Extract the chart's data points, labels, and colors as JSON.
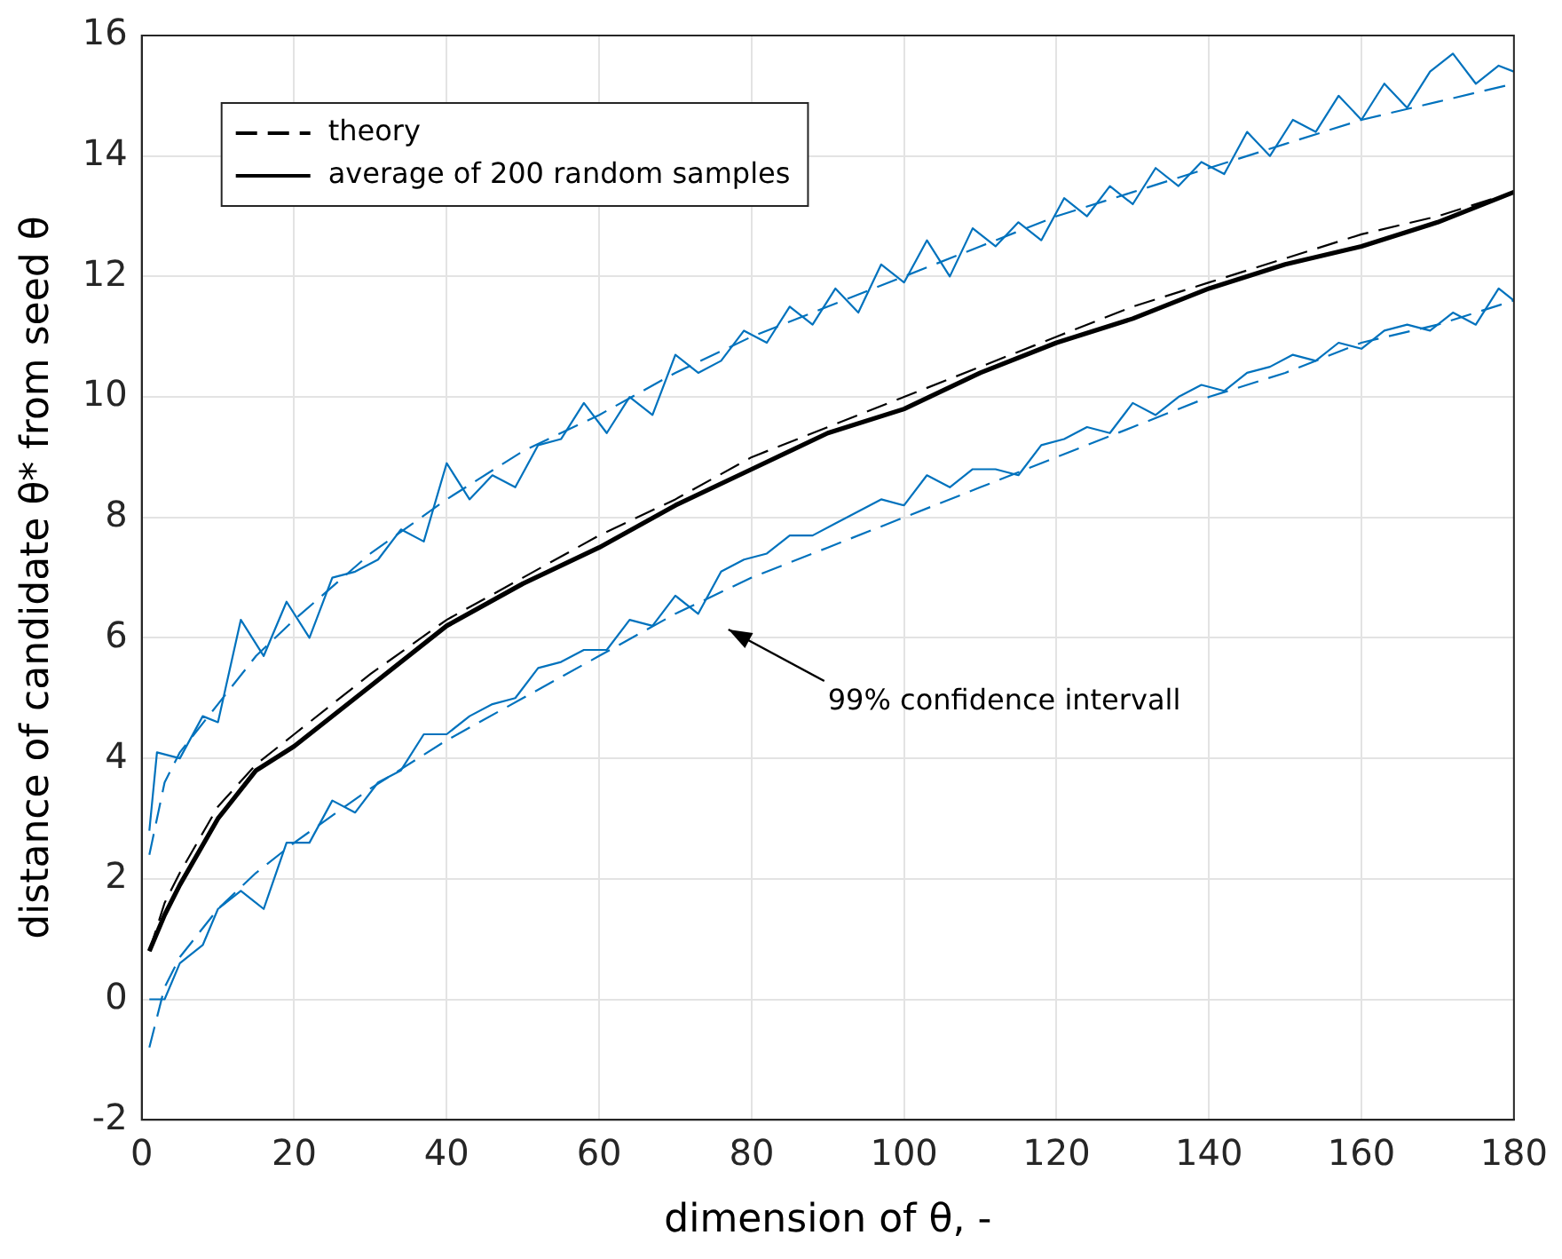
{
  "chart_data": {
    "type": "line",
    "xlabel": "dimension of θ, -",
    "ylabel": "distance of candidate θ* from seed θ",
    "xlim": [
      0,
      180
    ],
    "xticks": [
      0,
      20,
      40,
      60,
      80,
      100,
      120,
      140,
      160,
      180
    ],
    "ylim": [
      -2,
      16
    ],
    "yticks": [
      -2,
      0,
      2,
      4,
      6,
      8,
      10,
      12,
      14,
      16
    ],
    "grid": true,
    "legend": "top left",
    "marker": "none",
    "annotations": [
      "99% confidence intervall"
    ],
    "series": [
      {
        "color": "#0072bd",
        "line_style": "solid",
        "x": [
          1,
          2,
          5,
          8,
          10,
          13,
          16,
          19,
          22,
          25,
          28,
          31,
          34,
          37,
          40,
          43,
          46,
          49,
          52,
          55,
          58,
          61,
          64,
          67,
          70,
          73,
          76,
          79,
          82,
          85,
          88,
          91,
          94,
          97,
          100,
          103,
          106,
          109,
          112,
          115,
          118,
          121,
          124,
          127,
          130,
          133,
          136,
          139,
          142,
          145,
          148,
          151,
          154,
          157,
          160,
          163,
          166,
          169,
          172,
          175,
          178,
          180
        ],
        "values": [
          2.8,
          4.1,
          4.0,
          4.7,
          4.6,
          6.3,
          5.7,
          6.6,
          6.0,
          7.0,
          7.1,
          7.3,
          7.8,
          7.6,
          8.9,
          8.3,
          8.7,
          8.5,
          9.2,
          9.3,
          9.9,
          9.4,
          10.0,
          9.7,
          10.7,
          10.4,
          10.6,
          11.1,
          10.9,
          11.5,
          11.2,
          11.8,
          11.4,
          12.2,
          11.9,
          12.6,
          12.0,
          12.8,
          12.5,
          12.9,
          12.6,
          13.3,
          13.0,
          13.5,
          13.2,
          13.8,
          13.5,
          13.9,
          13.7,
          14.4,
          14.0,
          14.6,
          14.4,
          15.0,
          14.6,
          15.2,
          14.8,
          15.4,
          15.7,
          15.2,
          15.5,
          15.4
        ]
      },
      {
        "color": "#0072bd",
        "line_style": "solid",
        "x": [
          1,
          3,
          5,
          8,
          10,
          13,
          16,
          19,
          22,
          25,
          28,
          31,
          34,
          37,
          40,
          43,
          46,
          49,
          52,
          55,
          58,
          61,
          64,
          67,
          70,
          73,
          76,
          79,
          82,
          85,
          88,
          91,
          94,
          97,
          100,
          103,
          106,
          109,
          112,
          115,
          118,
          121,
          124,
          127,
          130,
          133,
          136,
          139,
          142,
          145,
          148,
          151,
          154,
          157,
          160,
          163,
          166,
          169,
          172,
          175,
          178,
          180
        ],
        "values": [
          0.0,
          0.0,
          0.6,
          0.9,
          1.5,
          1.8,
          1.5,
          2.6,
          2.6,
          3.3,
          3.1,
          3.6,
          3.8,
          4.4,
          4.4,
          4.7,
          4.9,
          5.0,
          5.5,
          5.6,
          5.8,
          5.8,
          6.3,
          6.2,
          6.7,
          6.4,
          7.1,
          7.3,
          7.4,
          7.7,
          7.7,
          7.9,
          8.1,
          8.3,
          8.2,
          8.7,
          8.5,
          8.8,
          8.8,
          8.7,
          9.2,
          9.3,
          9.5,
          9.4,
          9.9,
          9.7,
          10.0,
          10.2,
          10.1,
          10.4,
          10.5,
          10.7,
          10.6,
          10.9,
          10.8,
          11.1,
          11.2,
          11.1,
          11.4,
          11.2,
          11.8,
          11.6
        ]
      },
      {
        "color": "#0072bd",
        "line_style": "dashed",
        "x": [
          1,
          3,
          5,
          10,
          15,
          20,
          30,
          40,
          50,
          60,
          70,
          80,
          90,
          100,
          110,
          120,
          130,
          140,
          150,
          160,
          170,
          180
        ],
        "values": [
          2.4,
          3.6,
          4.1,
          4.9,
          5.7,
          6.3,
          7.4,
          8.3,
          9.1,
          9.7,
          10.4,
          11.0,
          11.5,
          12.0,
          12.5,
          13.0,
          13.4,
          13.8,
          14.2,
          14.6,
          14.9,
          15.2
        ]
      },
      {
        "color": "#0072bd",
        "line_style": "dashed",
        "x": [
          1,
          3,
          5,
          10,
          15,
          20,
          30,
          40,
          50,
          60,
          70,
          80,
          90,
          100,
          110,
          120,
          130,
          140,
          150,
          160,
          170,
          180
        ],
        "values": [
          -0.8,
          0.2,
          0.7,
          1.5,
          2.1,
          2.6,
          3.5,
          4.3,
          5.0,
          5.7,
          6.4,
          7.0,
          7.5,
          8.0,
          8.5,
          9.0,
          9.5,
          10.0,
          10.4,
          10.9,
          11.2,
          11.6
        ]
      },
      {
        "name": "theory",
        "color": "#000000",
        "line_style": "dashed",
        "x": [
          1,
          3,
          5,
          10,
          15,
          20,
          30,
          40,
          50,
          60,
          70,
          80,
          90,
          100,
          110,
          120,
          130,
          140,
          150,
          160,
          170,
          180
        ],
        "values": [
          0.8,
          1.6,
          2.1,
          3.2,
          3.9,
          4.4,
          5.4,
          6.3,
          7.0,
          7.7,
          8.3,
          9.0,
          9.5,
          10.0,
          10.5,
          11.0,
          11.5,
          11.9,
          12.3,
          12.7,
          13.0,
          13.4
        ]
      },
      {
        "name": "average of 200 random samples",
        "color": "#000000",
        "line_style": "solid",
        "x": [
          1,
          3,
          5,
          10,
          15,
          20,
          30,
          40,
          50,
          60,
          70,
          80,
          90,
          100,
          110,
          120,
          130,
          140,
          150,
          160,
          170,
          180
        ],
        "values": [
          0.8,
          1.4,
          1.9,
          3.0,
          3.8,
          4.2,
          5.2,
          6.2,
          6.9,
          7.5,
          8.2,
          8.8,
          9.4,
          9.8,
          10.4,
          10.9,
          11.3,
          11.8,
          12.2,
          12.5,
          12.9,
          13.4
        ]
      }
    ]
  }
}
